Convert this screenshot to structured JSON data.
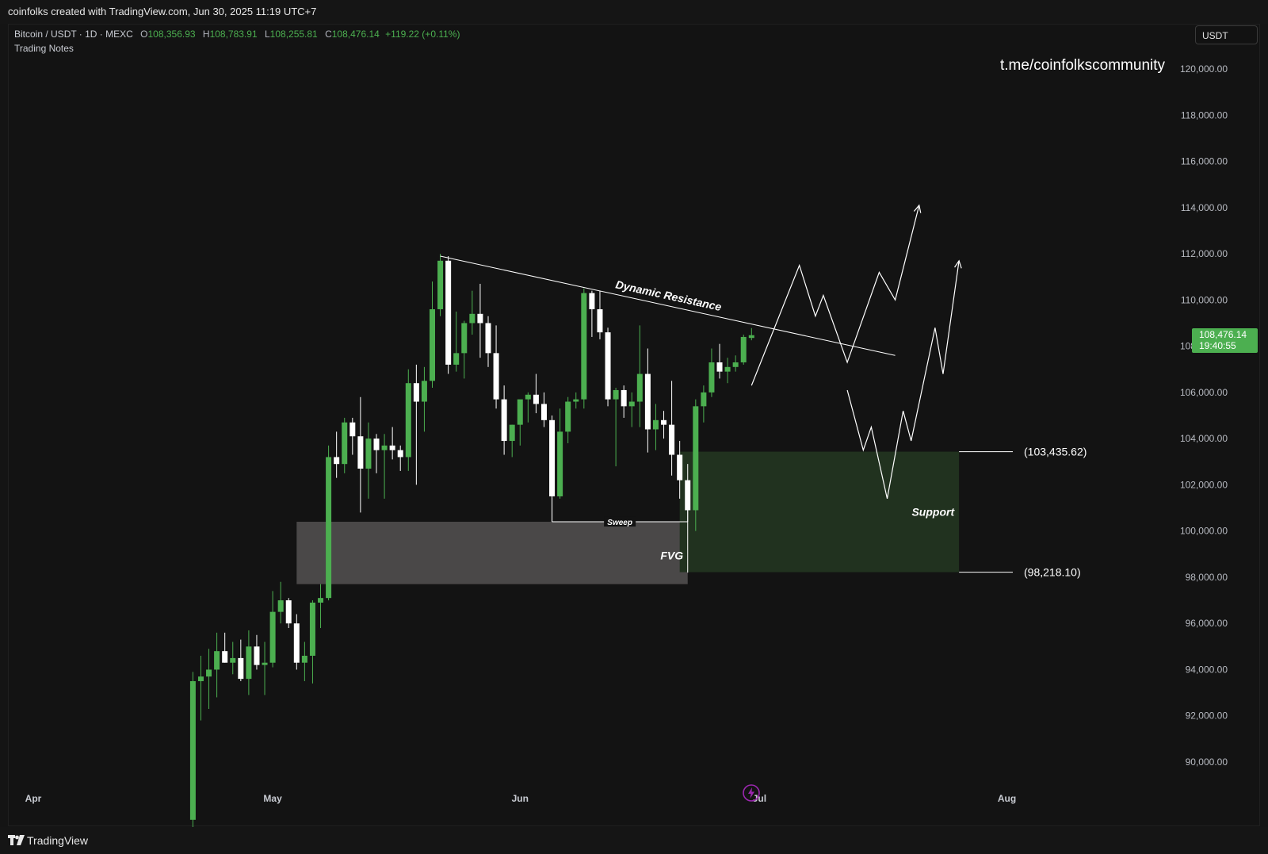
{
  "header": {
    "text": "coinfolks created with TradingView.com, Jun 30, 2025 11:19 UTC+7"
  },
  "legend": {
    "symbol": "Bitcoin / USDT · 1D · MEXC",
    "open_k": "O",
    "open": "108,356.93",
    "high_k": "H",
    "high": "108,783.91",
    "low_k": "L",
    "low": "108,255.81",
    "close_k": "C",
    "close": "108,476.14",
    "change": "+119.22 (+0.11%)",
    "notes": "Trading Notes"
  },
  "currency_button": "USDT",
  "watermark": "t.me/coinfolkscommunity",
  "price_tag": {
    "price": "108,476.14",
    "countdown": "19:40:55"
  },
  "footer": {
    "brand": "TradingView"
  },
  "colors": {
    "up": "#4caf50",
    "down": "#ffffff",
    "background": "#131313",
    "support_zone": "#21321f",
    "fvg_zone": "#4a4848"
  },
  "icons": {
    "lightning": "lightning-icon",
    "logo": "tradingview-logo-icon"
  },
  "chart_data": {
    "type": "candlestick",
    "ylim": [
      88000,
      121000
    ],
    "y_ticks": [
      "120,000.00",
      "118,000.00",
      "116,000.00",
      "114,000.00",
      "112,000.00",
      "110,000.00",
      "108,000.00",
      "106,000.00",
      "104,000.00",
      "102,000.00",
      "100,000.00",
      "98,000.00",
      "96,000.00",
      "94,000.00",
      "92,000.00",
      "90,000.00"
    ],
    "x_ticks": [
      {
        "label": "Apr",
        "date": "2025-04-01"
      },
      {
        "label": "May",
        "date": "2025-05-01"
      },
      {
        "label": "Jun",
        "date": "2025-06-01"
      },
      {
        "label": "Jul",
        "date": "2025-07-01"
      },
      {
        "label": "Aug",
        "date": "2025-08-01"
      }
    ],
    "candles": [
      {
        "date": "2025-04-21",
        "o": 87500,
        "h": 93900,
        "l": 87000,
        "c": 93500
      },
      {
        "date": "2025-04-22",
        "o": 93500,
        "h": 94600,
        "l": 91800,
        "c": 93700
      },
      {
        "date": "2025-04-23",
        "o": 93700,
        "h": 94900,
        "l": 92300,
        "c": 94000
      },
      {
        "date": "2025-04-24",
        "o": 94000,
        "h": 95600,
        "l": 92800,
        "c": 94800
      },
      {
        "date": "2025-04-25",
        "o": 94800,
        "h": 95600,
        "l": 94300,
        "c": 94300
      },
      {
        "date": "2025-04-26",
        "o": 94300,
        "h": 95200,
        "l": 93800,
        "c": 94500
      },
      {
        "date": "2025-04-27",
        "o": 94500,
        "h": 95300,
        "l": 93500,
        "c": 93600
      },
      {
        "date": "2025-04-28",
        "o": 93600,
        "h": 95700,
        "l": 92900,
        "c": 95000
      },
      {
        "date": "2025-04-29",
        "o": 95000,
        "h": 95500,
        "l": 94000,
        "c": 94200
      },
      {
        "date": "2025-04-30",
        "o": 94200,
        "h": 95200,
        "l": 92900,
        "c": 94300
      },
      {
        "date": "2025-05-01",
        "o": 94300,
        "h": 97400,
        "l": 94100,
        "c": 96500
      },
      {
        "date": "2025-05-02",
        "o": 96500,
        "h": 97800,
        "l": 96000,
        "c": 97000
      },
      {
        "date": "2025-05-03",
        "o": 97000,
        "h": 97100,
        "l": 95800,
        "c": 96000
      },
      {
        "date": "2025-05-04",
        "o": 96000,
        "h": 96400,
        "l": 94000,
        "c": 94300
      },
      {
        "date": "2025-05-05",
        "o": 94300,
        "h": 95200,
        "l": 93500,
        "c": 94600
      },
      {
        "date": "2025-05-06",
        "o": 94600,
        "h": 97000,
        "l": 93400,
        "c": 96900
      },
      {
        "date": "2025-05-07",
        "o": 96900,
        "h": 97700,
        "l": 95800,
        "c": 97100
      },
      {
        "date": "2025-05-08",
        "o": 97100,
        "h": 103700,
        "l": 97000,
        "c": 103200
      },
      {
        "date": "2025-05-09",
        "o": 103200,
        "h": 104300,
        "l": 102300,
        "c": 102900
      },
      {
        "date": "2025-05-10",
        "o": 102900,
        "h": 104900,
        "l": 102500,
        "c": 104700
      },
      {
        "date": "2025-05-11",
        "o": 104700,
        "h": 104900,
        "l": 103300,
        "c": 104100
      },
      {
        "date": "2025-05-12",
        "o": 104100,
        "h": 105800,
        "l": 100800,
        "c": 102700
      },
      {
        "date": "2025-05-13",
        "o": 102700,
        "h": 104700,
        "l": 101400,
        "c": 104000
      },
      {
        "date": "2025-05-14",
        "o": 104000,
        "h": 104200,
        "l": 102500,
        "c": 103500
      },
      {
        "date": "2025-05-15",
        "o": 103500,
        "h": 104200,
        "l": 101400,
        "c": 103700
      },
      {
        "date": "2025-05-16",
        "o": 103700,
        "h": 104500,
        "l": 103100,
        "c": 103500
      },
      {
        "date": "2025-05-17",
        "o": 103500,
        "h": 103700,
        "l": 102600,
        "c": 103200
      },
      {
        "date": "2025-05-18",
        "o": 103200,
        "h": 107000,
        "l": 102600,
        "c": 106400
      },
      {
        "date": "2025-05-19",
        "o": 106400,
        "h": 107200,
        "l": 102000,
        "c": 105600
      },
      {
        "date": "2025-05-20",
        "o": 105600,
        "h": 107100,
        "l": 104300,
        "c": 106500
      },
      {
        "date": "2025-05-21",
        "o": 106500,
        "h": 110800,
        "l": 106200,
        "c": 109600
      },
      {
        "date": "2025-05-22",
        "o": 109600,
        "h": 112000,
        "l": 109300,
        "c": 111700
      },
      {
        "date": "2025-05-23",
        "o": 111700,
        "h": 111900,
        "l": 106800,
        "c": 107200
      },
      {
        "date": "2025-05-24",
        "o": 107200,
        "h": 109500,
        "l": 106900,
        "c": 107700
      },
      {
        "date": "2025-05-25",
        "o": 107700,
        "h": 109100,
        "l": 106600,
        "c": 109000
      },
      {
        "date": "2025-05-26",
        "o": 109000,
        "h": 110400,
        "l": 108500,
        "c": 109400
      },
      {
        "date": "2025-05-27",
        "o": 109400,
        "h": 110700,
        "l": 107500,
        "c": 109000
      },
      {
        "date": "2025-05-28",
        "o": 109000,
        "h": 109300,
        "l": 107100,
        "c": 107700
      },
      {
        "date": "2025-05-29",
        "o": 107700,
        "h": 108900,
        "l": 105300,
        "c": 105700
      },
      {
        "date": "2025-05-30",
        "o": 105700,
        "h": 106300,
        "l": 103300,
        "c": 103900
      },
      {
        "date": "2025-05-31",
        "o": 103900,
        "h": 104600,
        "l": 103200,
        "c": 104600
      },
      {
        "date": "2025-06-01",
        "o": 104600,
        "h": 105500,
        "l": 103700,
        "c": 105700
      },
      {
        "date": "2025-06-02",
        "o": 105700,
        "h": 106000,
        "l": 104700,
        "c": 105900
      },
      {
        "date": "2025-06-03",
        "o": 105900,
        "h": 106800,
        "l": 105100,
        "c": 105500
      },
      {
        "date": "2025-06-04",
        "o": 105500,
        "h": 106000,
        "l": 104500,
        "c": 104800
      },
      {
        "date": "2025-06-05",
        "o": 104800,
        "h": 105000,
        "l": 100400,
        "c": 101500
      },
      {
        "date": "2025-06-06",
        "o": 101500,
        "h": 105300,
        "l": 101400,
        "c": 104300
      },
      {
        "date": "2025-06-07",
        "o": 104300,
        "h": 105800,
        "l": 103800,
        "c": 105600
      },
      {
        "date": "2025-06-08",
        "o": 105600,
        "h": 106000,
        "l": 105300,
        "c": 105700
      },
      {
        "date": "2025-06-09",
        "o": 105700,
        "h": 110500,
        "l": 105300,
        "c": 110300
      },
      {
        "date": "2025-06-10",
        "o": 110300,
        "h": 110400,
        "l": 108400,
        "c": 109600
      },
      {
        "date": "2025-06-11",
        "o": 109600,
        "h": 110400,
        "l": 108300,
        "c": 108600
      },
      {
        "date": "2025-06-12",
        "o": 108600,
        "h": 108800,
        "l": 105400,
        "c": 105700
      },
      {
        "date": "2025-06-13",
        "o": 105700,
        "h": 106200,
        "l": 102800,
        "c": 106100
      },
      {
        "date": "2025-06-14",
        "o": 106100,
        "h": 106300,
        "l": 104900,
        "c": 105400
      },
      {
        "date": "2025-06-15",
        "o": 105400,
        "h": 106000,
        "l": 104500,
        "c": 105600
      },
      {
        "date": "2025-06-16",
        "o": 105600,
        "h": 108900,
        "l": 104500,
        "c": 106800
      },
      {
        "date": "2025-06-17",
        "o": 106800,
        "h": 107900,
        "l": 103400,
        "c": 104400
      },
      {
        "date": "2025-06-18",
        "o": 104400,
        "h": 105500,
        "l": 103500,
        "c": 104800
      },
      {
        "date": "2025-06-19",
        "o": 104800,
        "h": 105200,
        "l": 104000,
        "c": 104600
      },
      {
        "date": "2025-06-20",
        "o": 104600,
        "h": 106500,
        "l": 102400,
        "c": 103300
      },
      {
        "date": "2025-06-21",
        "o": 103300,
        "h": 103900,
        "l": 101400,
        "c": 102200
      },
      {
        "date": "2025-06-22",
        "o": 102200,
        "h": 102900,
        "l": 98200,
        "c": 100900
      },
      {
        "date": "2025-06-23",
        "o": 100900,
        "h": 105700,
        "l": 100000,
        "c": 105400
      },
      {
        "date": "2025-06-24",
        "o": 105400,
        "h": 106300,
        "l": 104700,
        "c": 106000
      },
      {
        "date": "2025-06-25",
        "o": 106000,
        "h": 107900,
        "l": 105800,
        "c": 107300
      },
      {
        "date": "2025-06-26",
        "o": 107300,
        "h": 108100,
        "l": 106600,
        "c": 106900
      },
      {
        "date": "2025-06-27",
        "o": 106900,
        "h": 107500,
        "l": 106400,
        "c": 107100
      },
      {
        "date": "2025-06-28",
        "o": 107100,
        "h": 107600,
        "l": 106900,
        "c": 107300
      },
      {
        "date": "2025-06-29",
        "o": 107300,
        "h": 108500,
        "l": 107200,
        "c": 108400
      },
      {
        "date": "2025-06-30",
        "o": 108357,
        "h": 108784,
        "l": 108256,
        "c": 108476
      }
    ],
    "annotations": {
      "dynamic_resistance": {
        "label": "Dynamic Resistance",
        "from": {
          "date": "2025-05-22",
          "price": 111900
        },
        "to": {
          "date": "2025-07-18",
          "price": 107600
        }
      },
      "sweep": {
        "label": "Sweep",
        "price": 100400,
        "from_date": "2025-06-05",
        "to_date": "2025-06-22"
      },
      "fvg": {
        "label": "FVG",
        "top": 100400,
        "bottom": 97700,
        "from_date": "2025-05-04",
        "to_date": "2025-06-22"
      },
      "support": {
        "label": "Support",
        "top": 103435.62,
        "bottom": 98218.1,
        "from_date": "2025-06-21",
        "to_date": "2025-07-26"
      },
      "support_top_label": "(103,435.62)",
      "support_bottom_label": "(98,218.10)",
      "projection_1": [
        {
          "date": "2025-06-30",
          "price": 106300
        },
        {
          "date": "2025-07-06",
          "price": 111500
        },
        {
          "date": "2025-07-08",
          "price": 109300
        },
        {
          "date": "2025-07-09",
          "price": 110200
        },
        {
          "date": "2025-07-12",
          "price": 107300
        },
        {
          "date": "2025-07-16",
          "price": 111200
        },
        {
          "date": "2025-07-18",
          "price": 110000
        },
        {
          "date": "2025-07-21",
          "price": 114100
        }
      ],
      "projection_2": [
        {
          "date": "2025-07-12",
          "price": 106100
        },
        {
          "date": "2025-07-14",
          "price": 103500
        },
        {
          "date": "2025-07-15",
          "price": 104500
        },
        {
          "date": "2025-07-17",
          "price": 101400
        },
        {
          "date": "2025-07-19",
          "price": 105200
        },
        {
          "date": "2025-07-20",
          "price": 103900
        },
        {
          "date": "2025-07-23",
          "price": 108800
        },
        {
          "date": "2025-07-24",
          "price": 106800
        },
        {
          "date": "2025-07-26",
          "price": 111700
        }
      ]
    }
  }
}
